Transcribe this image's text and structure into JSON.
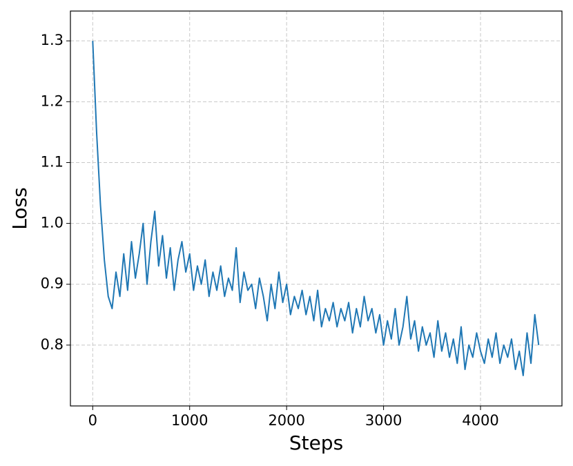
{
  "chart_data": {
    "type": "line",
    "xlabel": "Steps",
    "ylabel": "Loss",
    "grid": true,
    "xlim": [
      -230,
      4840
    ],
    "ylim": [
      0.7,
      1.349
    ],
    "xticks": [
      0,
      1000,
      2000,
      3000,
      4000
    ],
    "yticks": [
      0.8,
      0.9,
      {
        "value": 1,
        "label": "1.0"
      },
      1.1,
      1.2,
      1.3
    ],
    "x": [
      0,
      40,
      80,
      120,
      160,
      200,
      240,
      280,
      320,
      360,
      400,
      440,
      480,
      520,
      560,
      600,
      640,
      680,
      720,
      760,
      800,
      840,
      880,
      920,
      960,
      1000,
      1040,
      1080,
      1120,
      1160,
      1200,
      1240,
      1280,
      1320,
      1360,
      1400,
      1440,
      1480,
      1520,
      1560,
      1600,
      1640,
      1680,
      1720,
      1760,
      1800,
      1840,
      1880,
      1920,
      1960,
      2000,
      2040,
      2080,
      2120,
      2160,
      2200,
      2240,
      2280,
      2320,
      2360,
      2400,
      2440,
      2480,
      2520,
      2560,
      2600,
      2640,
      2680,
      2720,
      2760,
      2800,
      2840,
      2880,
      2920,
      2960,
      3000,
      3040,
      3080,
      3120,
      3160,
      3200,
      3240,
      3280,
      3320,
      3360,
      3400,
      3440,
      3480,
      3520,
      3560,
      3600,
      3640,
      3680,
      3720,
      3760,
      3800,
      3840,
      3880,
      3920,
      3960,
      4000,
      4040,
      4080,
      4120,
      4160,
      4200,
      4240,
      4280,
      4320,
      4360,
      4400,
      4440,
      4480,
      4520,
      4560,
      4600
    ],
    "series": [
      {
        "color": "#1f77b4",
        "values": [
          1.3,
          1.15,
          1.03,
          0.94,
          0.88,
          0.86,
          0.92,
          0.88,
          0.95,
          0.89,
          0.97,
          0.91,
          0.95,
          1.0,
          0.9,
          0.97,
          1.02,
          0.93,
          0.98,
          0.91,
          0.96,
          0.89,
          0.94,
          0.97,
          0.92,
          0.95,
          0.89,
          0.93,
          0.9,
          0.94,
          0.88,
          0.92,
          0.89,
          0.93,
          0.88,
          0.91,
          0.89,
          0.96,
          0.87,
          0.92,
          0.89,
          0.9,
          0.86,
          0.91,
          0.88,
          0.84,
          0.9,
          0.86,
          0.92,
          0.87,
          0.9,
          0.85,
          0.88,
          0.86,
          0.89,
          0.85,
          0.88,
          0.84,
          0.89,
          0.83,
          0.86,
          0.84,
          0.87,
          0.83,
          0.86,
          0.84,
          0.87,
          0.82,
          0.86,
          0.83,
          0.88,
          0.84,
          0.86,
          0.82,
          0.85,
          0.8,
          0.84,
          0.81,
          0.86,
          0.8,
          0.83,
          0.88,
          0.81,
          0.84,
          0.79,
          0.83,
          0.8,
          0.82,
          0.78,
          0.84,
          0.79,
          0.82,
          0.78,
          0.81,
          0.77,
          0.83,
          0.76,
          0.8,
          0.78,
          0.82,
          0.79,
          0.77,
          0.81,
          0.78,
          0.82,
          0.77,
          0.8,
          0.78,
          0.81,
          0.76,
          0.79,
          0.75,
          0.82,
          0.77,
          0.85,
          0.8
        ]
      }
    ]
  }
}
